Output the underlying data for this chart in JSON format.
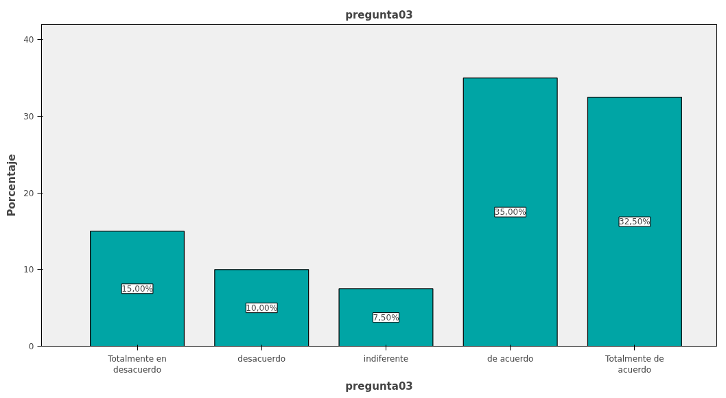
{
  "chart_data": {
    "type": "bar",
    "title": "pregunta03",
    "xlabel": "pregunta03",
    "ylabel": "Porcentaje",
    "categories": [
      "Totalmente en desacuerdo",
      "desacuerdo",
      "indiferente",
      "de acuerdo",
      "Totalmente de acuerdo"
    ],
    "values": [
      15,
      10,
      7.5,
      35,
      32.5
    ],
    "value_labels": [
      "15,00%",
      "10,00%",
      "7,50%",
      "35,00%",
      "32,50%"
    ],
    "color": "#00a5a5",
    "ylim": [
      0,
      42
    ],
    "yticks": [
      0,
      10,
      20,
      30,
      40
    ],
    "grid": false
  }
}
